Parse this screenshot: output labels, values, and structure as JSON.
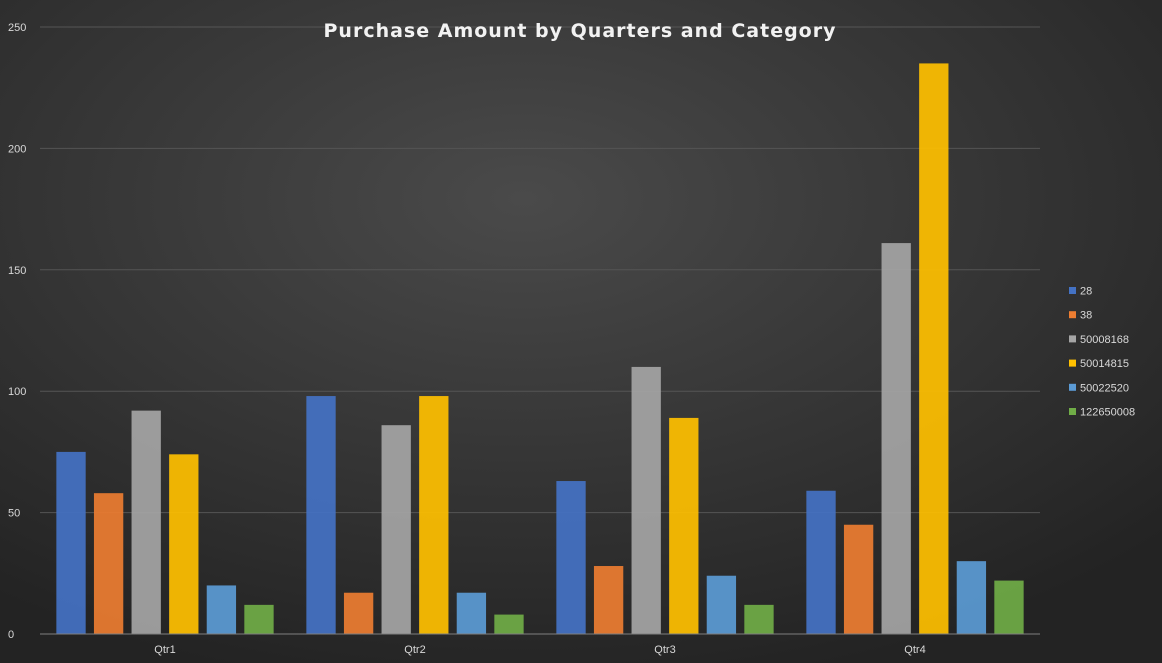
{
  "chart_data": {
    "type": "bar",
    "title": "Purchase Amount by Quarters and Category",
    "xlabel": "",
    "ylabel": "",
    "categories": [
      "Qtr1",
      "Qtr2",
      "Qtr3",
      "Qtr4"
    ],
    "ylim": [
      0,
      250
    ],
    "yticks": [
      0,
      50,
      100,
      150,
      200,
      250
    ],
    "grid": true,
    "legend_position": "right",
    "series": [
      {
        "name": "28",
        "color": "#4472c4",
        "values": [
          75,
          98,
          63,
          59
        ]
      },
      {
        "name": "38",
        "color": "#ed7d31",
        "values": [
          58,
          17,
          28,
          45
        ]
      },
      {
        "name": "50008168",
        "color": "#a5a5a5",
        "values": [
          92,
          86,
          110,
          161
        ]
      },
      {
        "name": "50014815",
        "color": "#ffc000",
        "values": [
          74,
          98,
          89,
          235
        ]
      },
      {
        "name": "50022520",
        "color": "#5b9bd5",
        "values": [
          20,
          17,
          24,
          30
        ]
      },
      {
        "name": "122650008",
        "color": "#70ad47",
        "values": [
          12,
          8,
          12,
          22
        ]
      }
    ]
  }
}
